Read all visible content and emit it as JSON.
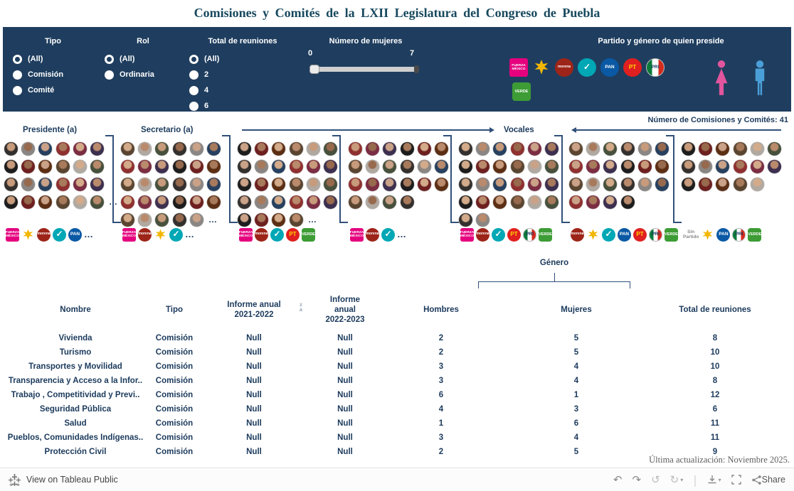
{
  "title": "Comisiones y Comités de la LXII Legislatura del Congreso de Puebla",
  "filterbar": {
    "tipo": {
      "label": "Tipo",
      "options": [
        {
          "label": "(All)",
          "selected": true
        },
        {
          "label": "Comisión",
          "selected": false
        },
        {
          "label": "Comité",
          "selected": false
        }
      ]
    },
    "rol": {
      "label": "Rol",
      "options": [
        {
          "label": "(All)",
          "selected": true
        },
        {
          "label": "Ordinaria",
          "selected": false
        }
      ]
    },
    "reuniones": {
      "label": "Total de reuniones",
      "options": [
        {
          "label": "(All)",
          "selected": true
        },
        {
          "label": "2",
          "selected": false
        },
        {
          "label": "4",
          "selected": false
        },
        {
          "label": "6",
          "selected": false
        }
      ]
    },
    "mujeres": {
      "label": "Número de mujeres",
      "min": "0",
      "max": "7"
    },
    "partido": {
      "label": "Partido y género de quien preside",
      "row1": [
        "fm",
        "psi",
        "morena",
        "na",
        "pan",
        "pt",
        "pri"
      ],
      "row2": [
        "verde"
      ]
    }
  },
  "parties": {
    "fm": {
      "name": "Fuerza por México",
      "text": "FUERZA\nMÉXICO",
      "color": "#e5017e"
    },
    "psi": {
      "name": "PSI",
      "text": "",
      "color": "#f2b705"
    },
    "morena": {
      "name": "Morena",
      "text": "morena",
      "color": "#9d2418"
    },
    "na": {
      "name": "Nueva Alianza",
      "text": "✓",
      "color": "#00a7b5"
    },
    "pan": {
      "name": "PAN",
      "text": "PAN",
      "color": "#0a59a5"
    },
    "pt": {
      "name": "PT",
      "text": "PT",
      "color": "#e02020"
    },
    "pri": {
      "name": "PRI",
      "text": "PRI",
      "color": "#ffffff"
    },
    "verde": {
      "name": "Partido Verde",
      "text": "VERDE",
      "color": "#3d9c35"
    },
    "sin": {
      "name": "Sin Partido",
      "text": "Sin\nPartido",
      "color": "#8a8a8a"
    },
    "dots": {
      "name": "more-parties",
      "text": "…",
      "color": "#1b3a5c"
    }
  },
  "viz": {
    "president_label": "Presidente  (a)",
    "secretary_label": "Secretario  (a)",
    "vocales_label": "Vocales",
    "count_label": "Número de Comisiones y Comités: 41",
    "genero_label": "Género",
    "ellipsis": "…",
    "groups": [
      {
        "id": "presidente",
        "rows": [
          6,
          6,
          6,
          6
        ],
        "ellipsis": true,
        "logos": [
          "fm",
          "psi",
          "morena",
          "na",
          "pan",
          "dots"
        ]
      },
      {
        "id": "secretario",
        "rows": [
          6,
          6,
          6,
          6,
          5
        ],
        "ellipsis": true,
        "logos": [
          "fm",
          "morena",
          "psi",
          "na",
          "dots"
        ]
      },
      {
        "id": "vocal-1",
        "rows": [
          6,
          6,
          6,
          6,
          4
        ],
        "ellipsis": true,
        "logos": [
          "fm",
          "morena",
          "na",
          "pt",
          "verde"
        ]
      },
      {
        "id": "vocal-2",
        "rows": [
          6,
          6,
          6,
          4
        ],
        "ellipsis": false,
        "logos": [
          "fm",
          "morena",
          "na",
          "dots"
        ]
      },
      {
        "id": "vocal-3",
        "rows": [
          6,
          6,
          6,
          6,
          2
        ],
        "ellipsis": false,
        "logos": [
          "fm",
          "morena",
          "na",
          "pt",
          "pri",
          "verde"
        ]
      },
      {
        "id": "vocal-4",
        "rows": [
          6,
          6,
          6,
          4
        ],
        "ellipsis": false,
        "logos": [
          "morena",
          "psi",
          "na",
          "pan",
          "pt",
          "pri",
          "verde"
        ]
      },
      {
        "id": "vocal-5",
        "rows": [
          6,
          6,
          5
        ],
        "ellipsis": false,
        "logos": [
          "sin",
          "psi",
          "pan",
          "pri",
          "verde"
        ]
      }
    ]
  },
  "avatar_colors": {
    "skin": [
      "#c79b7b",
      "#b98a6c",
      "#d3ab8a",
      "#a87a5c",
      "#caa288",
      "#97694d"
    ],
    "outfit": [
      "#33302e",
      "#6e2020",
      "#27405f",
      "#5a4531",
      "#7b2d43",
      "#47503c",
      "#1d1d1d",
      "#8a8684",
      "#5c2f15",
      "#8f3030",
      "#b0a9a2",
      "#3c2f4f"
    ]
  },
  "table": {
    "headers": [
      [
        "Nombre"
      ],
      [
        "Tipo"
      ],
      [
        "Informe anual",
        "2021-2022"
      ],
      [
        "Informe",
        "anual",
        "2022-2023"
      ],
      [
        "Hombres"
      ],
      [
        "Mujeres"
      ],
      [
        "Total de reuniones"
      ]
    ],
    "sort_icon_letters": [
      "z",
      "a"
    ],
    "rows": [
      [
        "Vivienda",
        "Comisión",
        "Null",
        "Null",
        "2",
        "5",
        "8"
      ],
      [
        "Turismo",
        "Comisión",
        "Null",
        "Null",
        "2",
        "5",
        "10"
      ],
      [
        "Transportes y Movilidad",
        "Comisión",
        "Null",
        "Null",
        "3",
        "4",
        "10"
      ],
      [
        "Transparencia y Acceso a la Infor..",
        "Comisión",
        "Null",
        "Null",
        "3",
        "4",
        "8"
      ],
      [
        "Trabajo , Competitividad y Previ..",
        "Comisión",
        "Null",
        "Null",
        "6",
        "1",
        "12"
      ],
      [
        "Seguridad Pública",
        "Comisión",
        "Null",
        "Null",
        "4",
        "3",
        "6"
      ],
      [
        "Salud",
        "Comisión",
        "Null",
        "Null",
        "1",
        "6",
        "11"
      ],
      [
        "Pueblos, Comunidades Indígenas..",
        "Comisión",
        "Null",
        "Null",
        "3",
        "4",
        "11"
      ],
      [
        "Protección Civil",
        "Comisión",
        "Null",
        "Null",
        "2",
        "5",
        "9"
      ]
    ]
  },
  "footer": {
    "last_update": "Última actualización: Noviembre 2025.",
    "view_label": "View on Tableau Public",
    "share_label": "Share",
    "icons": {
      "undo": "↶",
      "redo": "↷",
      "revert": "↺",
      "refresh": "↻",
      "caret": "▾"
    }
  },
  "colors": {
    "navy": "#1b3a5c",
    "bar_background": "#1f3e5f",
    "accent_female": "#e0559e",
    "accent_male": "#4a9fd8"
  }
}
